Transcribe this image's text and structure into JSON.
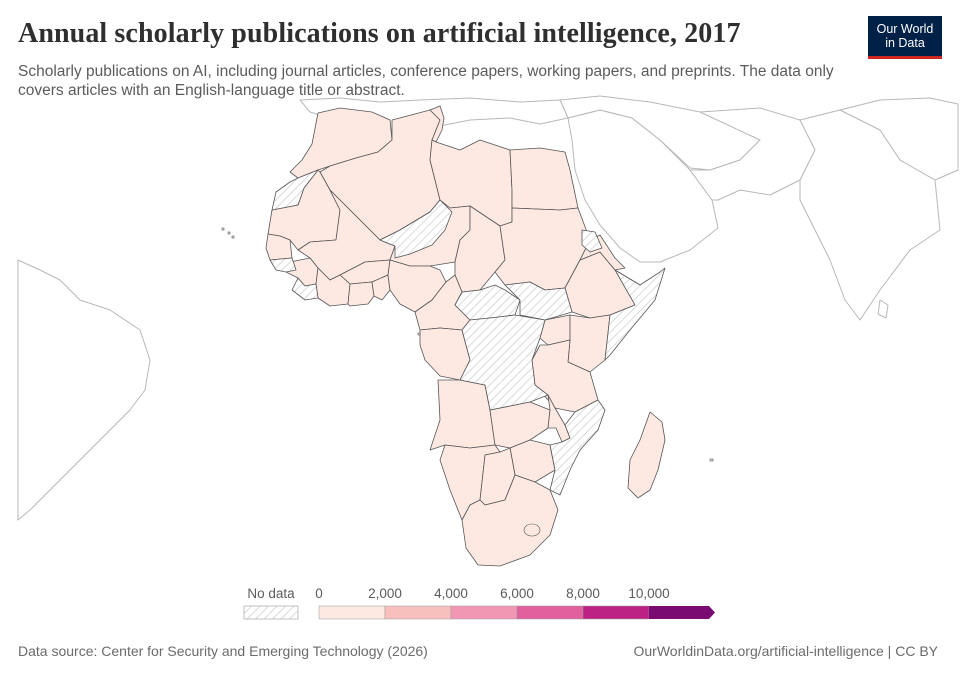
{
  "header": {
    "title": "Annual scholarly publications on artificial intelligence, 2017",
    "subtitle": "Scholarly publications on AI, including journal articles, conference papers, working papers, and preprints. The data only covers articles with an English-language title or abstract."
  },
  "logo": {
    "line1": "Our World",
    "line2": "in Data"
  },
  "legend": {
    "no_data_label": "No data",
    "bins": [
      {
        "min": 0,
        "max": 2000,
        "color": "#fde9e2"
      },
      {
        "min": 2000,
        "max": 4000,
        "color": "#f8c0bd"
      },
      {
        "min": 4000,
        "max": 6000,
        "color": "#f197b3"
      },
      {
        "min": 6000,
        "max": 8000,
        "color": "#e3609f"
      },
      {
        "min": 8000,
        "max": 10000,
        "color": "#bc2184"
      },
      {
        "min": 10000,
        "max": null,
        "color": "#7a0b72"
      }
    ],
    "tick_labels": [
      "0",
      "2,000",
      "4,000",
      "6,000",
      "8,000",
      "10,000"
    ]
  },
  "map": {
    "region": "Africa",
    "year": 2017,
    "fill_colors": {
      "data": "#fde9e2",
      "no_data_hatch": "#d8d8d8",
      "border": "#555555",
      "outside": "#b8b8b8"
    }
  },
  "footer": {
    "source": "Data source: Center for Security and Emerging Technology (2026)",
    "credit": "OurWorldinData.org/artificial-intelligence | CC BY"
  }
}
